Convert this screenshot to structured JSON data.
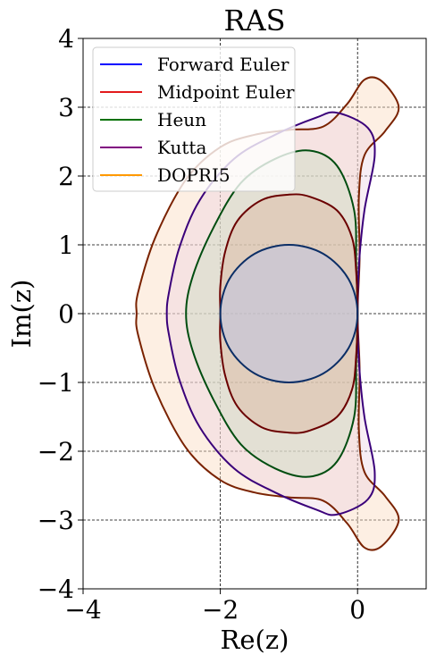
{
  "chart_data": {
    "type": "line",
    "title": "RAS",
    "xlabel": "Re(z)",
    "ylabel": "Im(z)",
    "xlim": [
      -4,
      1
    ],
    "ylim": [
      -4,
      4
    ],
    "xticks": [
      {
        "value": -4,
        "label": "−4"
      },
      {
        "value": -2,
        "label": "−2"
      },
      {
        "value": 0,
        "label": "0"
      }
    ],
    "yticks": [
      {
        "value": -4,
        "label": "−4"
      },
      {
        "value": -3,
        "label": "−3"
      },
      {
        "value": -2,
        "label": "−2"
      },
      {
        "value": -1,
        "label": "−1"
      },
      {
        "value": 0,
        "label": "0"
      },
      {
        "value": 1,
        "label": "1"
      },
      {
        "value": 2,
        "label": "2"
      },
      {
        "value": 3,
        "label": "3"
      },
      {
        "value": 4,
        "label": "4"
      }
    ],
    "grid": true,
    "grid_style": "dashed",
    "legend_position": "top-left",
    "series": [
      {
        "name": "Forward Euler",
        "legend_color": "#0000ff",
        "stroke": "#0b2e66",
        "fill": "#b9c3e8",
        "fill_opacity": 0.45,
        "points": [
          [
            0,
            0
          ],
          [
            -0.13,
            0.5
          ],
          [
            -0.5,
            0.87
          ],
          [
            -1,
            1
          ],
          [
            -1.5,
            0.87
          ],
          [
            -1.87,
            0.5
          ],
          [
            -2,
            0
          ],
          [
            -1.87,
            -0.5
          ],
          [
            -1.5,
            -0.87
          ],
          [
            -1,
            -1
          ],
          [
            -0.5,
            -0.87
          ],
          [
            -0.13,
            -0.5
          ],
          [
            0,
            0
          ]
        ]
      },
      {
        "name": "Midpoint Euler",
        "legend_color": "#e31a1c",
        "stroke": "#6b0000",
        "fill": "#d9a98e",
        "fill_opacity": 0.35,
        "points": [
          [
            0,
            0
          ],
          [
            -0.02,
            0.6
          ],
          [
            -0.08,
            1.1
          ],
          [
            -0.3,
            1.5
          ],
          [
            -0.7,
            1.7
          ],
          [
            -1.0,
            1.73
          ],
          [
            -1.4,
            1.65
          ],
          [
            -1.75,
            1.35
          ],
          [
            -1.93,
            0.9
          ],
          [
            -2.0,
            0.4
          ],
          [
            -2.0,
            0
          ],
          [
            -2.0,
            -0.4
          ],
          [
            -1.93,
            -0.9
          ],
          [
            -1.75,
            -1.35
          ],
          [
            -1.4,
            -1.65
          ],
          [
            -1.0,
            -1.73
          ],
          [
            -0.7,
            -1.7
          ],
          [
            -0.3,
            -1.5
          ],
          [
            -0.08,
            -1.1
          ],
          [
            -0.02,
            -0.6
          ],
          [
            0,
            0
          ]
        ]
      },
      {
        "name": "Heun",
        "legend_color": "#007000",
        "stroke": "#004d10",
        "fill": "#c8dcc0",
        "fill_opacity": 0.4,
        "points": [
          [
            0,
            0
          ],
          [
            -0.02,
            0.7
          ],
          [
            -0.05,
            1.5
          ],
          [
            -0.3,
            2.15
          ],
          [
            -0.7,
            2.37
          ],
          [
            -1.2,
            2.25
          ],
          [
            -1.7,
            1.9
          ],
          [
            -2.1,
            1.25
          ],
          [
            -2.4,
            0.55
          ],
          [
            -2.5,
            0
          ],
          [
            -2.4,
            -0.55
          ],
          [
            -2.1,
            -1.25
          ],
          [
            -1.7,
            -1.9
          ],
          [
            -1.2,
            -2.25
          ],
          [
            -0.7,
            -2.37
          ],
          [
            -0.3,
            -2.15
          ],
          [
            -0.05,
            -1.5
          ],
          [
            -0.02,
            -0.7
          ],
          [
            0,
            0
          ]
        ]
      },
      {
        "name": "Kutta",
        "legend_color": "#800080",
        "stroke": "#3a007a",
        "fill": "#e8cfdf",
        "fill_opacity": 0.35,
        "points": [
          [
            0,
            0
          ],
          [
            0.02,
            0.7
          ],
          [
            0.1,
            1.5
          ],
          [
            0.25,
            2.3
          ],
          [
            0.15,
            2.7
          ],
          [
            -0.3,
            2.92
          ],
          [
            -0.6,
            2.85
          ],
          [
            -1.2,
            2.6
          ],
          [
            -1.8,
            2.25
          ],
          [
            -2.3,
            1.65
          ],
          [
            -2.6,
            0.95
          ],
          [
            -2.75,
            0.3
          ],
          [
            -2.78,
            0
          ],
          [
            -2.75,
            -0.3
          ],
          [
            -2.6,
            -0.95
          ],
          [
            -2.3,
            -1.65
          ],
          [
            -1.8,
            -2.25
          ],
          [
            -1.2,
            -2.6
          ],
          [
            -0.6,
            -2.85
          ],
          [
            -0.3,
            -2.92
          ],
          [
            0.15,
            -2.7
          ],
          [
            0.25,
            -2.3
          ],
          [
            0.1,
            -1.5
          ],
          [
            0.02,
            -0.7
          ],
          [
            0,
            0
          ]
        ]
      },
      {
        "name": "DOPRI5",
        "legend_color": "#ff9900",
        "stroke": "#7a2200",
        "fill": "#fbdcc0",
        "fill_opacity": 0.45,
        "points": [
          [
            0,
            0
          ],
          [
            0.03,
            0.8
          ],
          [
            0.02,
            1.7
          ],
          [
            0.1,
            2.3
          ],
          [
            0.4,
            2.65
          ],
          [
            0.6,
            3.0
          ],
          [
            0.35,
            3.38
          ],
          [
            0.1,
            3.4
          ],
          [
            -0.15,
            3.05
          ],
          [
            -0.5,
            2.72
          ],
          [
            -1.0,
            2.67
          ],
          [
            -1.5,
            2.6
          ],
          [
            -2.0,
            2.42
          ],
          [
            -2.5,
            1.95
          ],
          [
            -2.95,
            1.1
          ],
          [
            -3.2,
            0.3
          ],
          [
            -3.22,
            0
          ],
          [
            -3.2,
            -0.3
          ],
          [
            -2.95,
            -1.1
          ],
          [
            -2.5,
            -1.95
          ],
          [
            -2.0,
            -2.42
          ],
          [
            -1.5,
            -2.6
          ],
          [
            -1.0,
            -2.67
          ],
          [
            -0.5,
            -2.72
          ],
          [
            -0.15,
            -3.05
          ],
          [
            0.1,
            -3.4
          ],
          [
            0.35,
            -3.38
          ],
          [
            0.6,
            -3.0
          ],
          [
            0.4,
            -2.65
          ],
          [
            0.1,
            -2.3
          ],
          [
            0.02,
            -1.7
          ],
          [
            0.03,
            -0.8
          ],
          [
            0,
            0
          ]
        ]
      }
    ]
  }
}
